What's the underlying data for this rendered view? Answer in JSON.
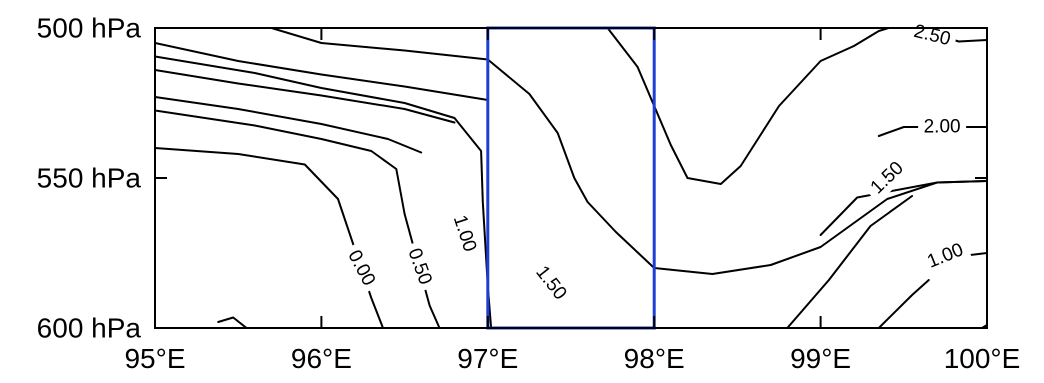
{
  "chart_data": {
    "type": "contour",
    "title": "",
    "xlabel": "",
    "ylabel": "",
    "xlim": [
      95,
      100
    ],
    "ylim": [
      600,
      500
    ],
    "x_ticks": [
      {
        "value": 95,
        "label": "95°E"
      },
      {
        "value": 96,
        "label": "96°E"
      },
      {
        "value": 97,
        "label": "97°E"
      },
      {
        "value": 98,
        "label": "98°E"
      },
      {
        "value": 99,
        "label": "99°E"
      },
      {
        "value": 100,
        "label": "100°E"
      }
    ],
    "y_ticks": [
      {
        "value": 500,
        "label": "500 hPa"
      },
      {
        "value": 550,
        "label": "550 hPa"
      },
      {
        "value": 600,
        "label": "600 hPa"
      }
    ],
    "highlight_box": {
      "x": [
        97,
        98
      ],
      "y": [
        500,
        600
      ],
      "color": "#1c3fd6"
    },
    "contours": [
      {
        "label": "",
        "points": [
          [
            95,
            505.0
          ],
          [
            95.5,
            511.0
          ],
          [
            96,
            515.5
          ],
          [
            96.5,
            519.5
          ],
          [
            97,
            524.0
          ]
        ]
      },
      {
        "label": "",
        "points": [
          [
            95,
            514.0
          ],
          [
            95.5,
            518.5
          ],
          [
            96,
            522.5
          ],
          [
            96.5,
            527.0
          ],
          [
            96.8,
            531.5
          ]
        ]
      },
      {
        "label": "",
        "points": [
          [
            95,
            523.0
          ],
          [
            95.5,
            527.0
          ],
          [
            96,
            532.0
          ],
          [
            96.4,
            537.0
          ],
          [
            96.6,
            541.5
          ]
        ]
      },
      {
        "label": "0.00",
        "label_at": {
          "x": 96.24,
          "y": 580
        },
        "label_rotation": 62,
        "points": [
          [
            95,
            540.0
          ],
          [
            95.5,
            542.0
          ],
          [
            95.9,
            545.5
          ],
          [
            96.1,
            557.0
          ],
          [
            96.3,
            590.0
          ],
          [
            96.37,
            600
          ]
        ]
      },
      {
        "label": "0.50",
        "label_at": {
          "x": 96.59,
          "y": 579.5
        },
        "label_rotation": 70,
        "points": [
          [
            95,
            527.5
          ],
          [
            95.6,
            532.5
          ],
          [
            96,
            537.0
          ],
          [
            96.3,
            541.0
          ],
          [
            96.45,
            547.0
          ],
          [
            96.5,
            562.0
          ],
          [
            96.65,
            592.5
          ],
          [
            96.71,
            600
          ]
        ]
      },
      {
        "label": "1.00",
        "label_at": {
          "x": 96.86,
          "y": 568.5
        },
        "label_rotation": 72,
        "points": [
          [
            95,
            509.5
          ],
          [
            95.6,
            515.0
          ],
          [
            96,
            520.0
          ],
          [
            96.5,
            525.0
          ],
          [
            96.8,
            530.0
          ],
          [
            96.96,
            541.0
          ],
          [
            96.97,
            558.0
          ],
          [
            97.0,
            586.0
          ],
          [
            97.02,
            600
          ]
        ]
      },
      {
        "label": "1.50",
        "label_at": {
          "x": 97.38,
          "y": 585
        },
        "label_rotation": 52,
        "points": [
          [
            95.7,
            500
          ],
          [
            96,
            505.0
          ],
          [
            96.5,
            507.5
          ],
          [
            97,
            510.5
          ],
          [
            97.25,
            522.0
          ],
          [
            97.42,
            535.0
          ],
          [
            97.52,
            550.0
          ],
          [
            97.6,
            558.0
          ],
          [
            97.77,
            568.0
          ],
          [
            98,
            580.0
          ],
          [
            98.35,
            582.0
          ],
          [
            98.7,
            579.0
          ],
          [
            99.0,
            573.0
          ],
          [
            99.2,
            565.0
          ],
          [
            99.4,
            557.0
          ],
          [
            99.7,
            551.5
          ],
          [
            100,
            551.0
          ]
        ]
      },
      {
        "label": "",
        "points": [
          [
            97.72,
            500
          ],
          [
            97.9,
            513.0
          ],
          [
            98.1,
            539.0
          ],
          [
            98.2,
            550.0
          ],
          [
            98.4,
            552.0
          ],
          [
            98.52,
            546.0
          ],
          [
            98.75,
            526.0
          ],
          [
            99,
            511.0
          ],
          [
            99.2,
            506.0
          ],
          [
            99.35,
            501.0
          ],
          [
            99.5,
            498.5
          ]
        ]
      },
      {
        "label": "2.50",
        "label_at": {
          "x": 99.67,
          "y": 502.5
        },
        "label_rotation": 14,
        "points": [
          [
            99.5,
            498.5
          ],
          [
            99.83,
            504.5
          ],
          [
            100,
            504.0
          ]
        ]
      },
      {
        "label": "2.00",
        "label_at": {
          "x": 99.73,
          "y": 533
        },
        "label_rotation": 0,
        "points": [
          [
            99.35,
            536.0
          ],
          [
            99.5,
            533.0
          ],
          [
            100,
            533.0
          ]
        ]
      },
      {
        "label": "1.50",
        "label_at": {
          "x": 99.4,
          "y": 550
        },
        "label_rotation": -44,
        "points": [
          [
            99.0,
            569.0
          ],
          [
            99.22,
            556.5
          ],
          [
            99.7,
            551.5
          ],
          [
            100,
            551.0
          ]
        ]
      },
      {
        "label": "1.00",
        "label_at": {
          "x": 99.75,
          "y": 576
        },
        "label_rotation": -22,
        "points": [
          [
            98.8,
            600
          ],
          [
            99.05,
            584.0
          ],
          [
            99.3,
            566.0
          ],
          [
            99.55,
            556.0
          ]
        ]
      },
      {
        "label": "",
        "points": [
          [
            99.35,
            600
          ],
          [
            99.55,
            589.0
          ],
          [
            99.65,
            584.0
          ]
        ]
      },
      {
        "label": "",
        "points": [
          [
            99.85,
            576.0
          ],
          [
            100,
            575.0
          ]
        ]
      },
      {
        "label": "",
        "points": [
          [
            99.97,
            600
          ],
          [
            100,
            599.0
          ]
        ]
      },
      {
        "label": "",
        "points": [
          [
            95.38,
            598.0
          ],
          [
            95.47,
            596.5
          ],
          [
            95.55,
            600
          ]
        ]
      }
    ]
  }
}
